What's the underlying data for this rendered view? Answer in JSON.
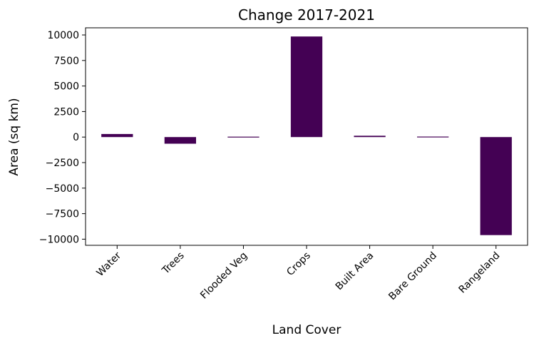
{
  "chart_data": {
    "type": "bar",
    "title": "Change 2017-2021",
    "xlabel": "Land Cover",
    "ylabel": "Area (sq km)",
    "categories": [
      "Water",
      "Trees",
      "Flooded Veg",
      "Crops",
      "Built Area",
      "Bare Ground",
      "Rangeland"
    ],
    "values": [
      300,
      -650,
      40,
      9850,
      130,
      50,
      -9600
    ],
    "ylim": [
      -10600,
      10700
    ],
    "yticks": [
      10000,
      7500,
      5000,
      2500,
      0,
      -2500,
      -5000,
      -7500,
      -10000
    ],
    "ytick_labels": [
      "10000",
      "7500",
      "5000",
      "2500",
      "0",
      "−2500",
      "−5000",
      "−7500",
      "−10000"
    ],
    "bar_color": "#440154",
    "grid": false,
    "legend": "none"
  }
}
